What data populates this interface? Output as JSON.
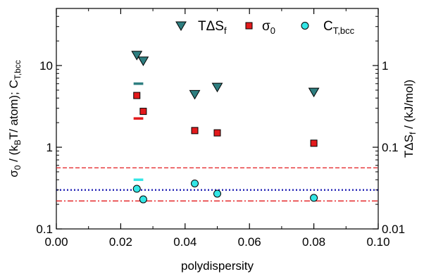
{
  "chart_data": {
    "type": "scatter",
    "xlabel": "polydispersity",
    "ylabel_left": "σ0 / (kBT/ atom);  CT,bcc",
    "ylabel_right": "TΔSf  / (kJ/mol)",
    "xlim": [
      0.0,
      0.1
    ],
    "ylim_left": [
      0.1,
      50
    ],
    "ylim_right": [
      0.01,
      5
    ],
    "yscale": "log",
    "x_ticks": [
      "0.00",
      "0.02",
      "0.04",
      "0.06",
      "0.08",
      "0.10"
    ],
    "y_left_ticks": [
      {
        "value": 0.1,
        "label": "0.1"
      },
      {
        "value": 1,
        "label": "1"
      },
      {
        "value": 10,
        "label": "10"
      }
    ],
    "y_right_ticks": [
      {
        "value": 0.01,
        "label": "0.01"
      },
      {
        "value": 0.1,
        "label": "0.1"
      },
      {
        "value": 1,
        "label": "1"
      }
    ],
    "legend_position": "top-right",
    "series": [
      {
        "name": "TΔSf",
        "marker": "triangle-down",
        "color": "#2e7e80",
        "axis": "right",
        "x": [
          0.025,
          0.027,
          0.043,
          0.05,
          0.08
        ],
        "y": [
          1.33,
          1.13,
          0.44,
          0.54,
          0.47
        ]
      },
      {
        "name": "σ0",
        "marker": "square",
        "color": "#e31a1c",
        "axis": "left",
        "x": [
          0.025,
          0.027,
          0.043,
          0.05,
          0.08
        ],
        "y": [
          4.3,
          2.75,
          1.6,
          1.5,
          1.12
        ]
      },
      {
        "name": "CT,bcc",
        "marker": "circle",
        "color": "#33e6e6",
        "axis": "left",
        "x": [
          0.025,
          0.027,
          0.043,
          0.05,
          0.08
        ],
        "y": [
          0.31,
          0.23,
          0.36,
          0.27,
          0.24
        ]
      }
    ],
    "short_bars": [
      {
        "color": "#2e7e80",
        "x": [
          0.024,
          0.027
        ],
        "y": 6.0
      },
      {
        "color": "#e31a1c",
        "x": [
          0.024,
          0.027
        ],
        "y": 2.25
      },
      {
        "color": "#33e6e6",
        "x": [
          0.024,
          0.027
        ],
        "y": 0.4
      }
    ],
    "reference_lines": [
      {
        "style": "dashed",
        "color": "#e31a1c",
        "y": 0.56
      },
      {
        "style": "dotted",
        "color": "#1f1fb4",
        "y": 0.3
      },
      {
        "style": "dash-dot",
        "color": "#e31a1c",
        "y": 0.22
      }
    ]
  }
}
